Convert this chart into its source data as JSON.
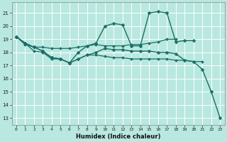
{
  "xlabel": "Humidex (Indice chaleur)",
  "background_color": "#b8e8e0",
  "grid_color": "#ffffff",
  "line_color": "#1a6e64",
  "xlim": [
    -0.5,
    23.5
  ],
  "ylim": [
    12.5,
    21.8
  ],
  "yticks": [
    13,
    14,
    15,
    16,
    17,
    18,
    19,
    20,
    21
  ],
  "xticks": [
    0,
    1,
    2,
    3,
    4,
    5,
    6,
    7,
    8,
    9,
    10,
    11,
    12,
    13,
    14,
    15,
    16,
    17,
    18,
    19,
    20,
    21,
    22,
    23
  ],
  "series": [
    {
      "x": [
        0,
        1,
        2,
        3,
        4,
        5,
        6,
        7,
        8,
        9,
        10,
        11,
        12,
        13,
        14,
        15,
        16,
        17,
        18,
        19,
        20,
        21,
        22,
        23
      ],
      "y": [
        19.2,
        18.7,
        18.4,
        18.1,
        17.6,
        17.5,
        17.2,
        17.5,
        17.8,
        18.0,
        18.3,
        18.2,
        18.2,
        18.1,
        18.1,
        18.1,
        18.0,
        18.0,
        17.9,
        17.4,
        17.3,
        16.7,
        15.0,
        13.0
      ],
      "lw": 1.0,
      "marker": true,
      "ms": 2.5
    },
    {
      "x": [
        0,
        1,
        2,
        3,
        4,
        5,
        6,
        7,
        8,
        9,
        10,
        11,
        12,
        13,
        14,
        15,
        16,
        17,
        18,
        19,
        20
      ],
      "y": [
        19.2,
        18.7,
        18.4,
        18.1,
        17.6,
        17.5,
        17.2,
        18.0,
        18.5,
        18.7,
        20.0,
        20.2,
        20.1,
        18.5,
        18.5,
        21.0,
        21.1,
        21.0,
        18.8,
        18.9,
        18.9
      ],
      "lw": 1.0,
      "marker": true,
      "ms": 2.5
    },
    {
      "x": [
        0,
        1,
        2,
        3,
        4,
        5,
        6,
        7,
        8,
        9,
        10,
        11,
        12,
        13,
        14,
        15,
        16,
        17,
        18
      ],
      "y": [
        19.2,
        18.6,
        18.4,
        18.4,
        18.3,
        18.3,
        18.3,
        18.4,
        18.5,
        18.6,
        18.5,
        18.5,
        18.5,
        18.6,
        18.6,
        18.7,
        18.8,
        19.0,
        19.0
      ],
      "lw": 0.9,
      "marker": true,
      "ms": 2.0
    },
    {
      "x": [
        0,
        1,
        2,
        3,
        4,
        5,
        6,
        7,
        8,
        9,
        10,
        11,
        12,
        13,
        14,
        15,
        16,
        17,
        18,
        19,
        20,
        21
      ],
      "y": [
        19.2,
        18.7,
        18.1,
        18.0,
        17.5,
        17.5,
        17.2,
        17.5,
        17.8,
        17.8,
        17.7,
        17.6,
        17.6,
        17.5,
        17.5,
        17.5,
        17.5,
        17.5,
        17.4,
        17.4,
        17.3,
        17.3
      ],
      "lw": 0.9,
      "marker": true,
      "ms": 2.0
    }
  ]
}
